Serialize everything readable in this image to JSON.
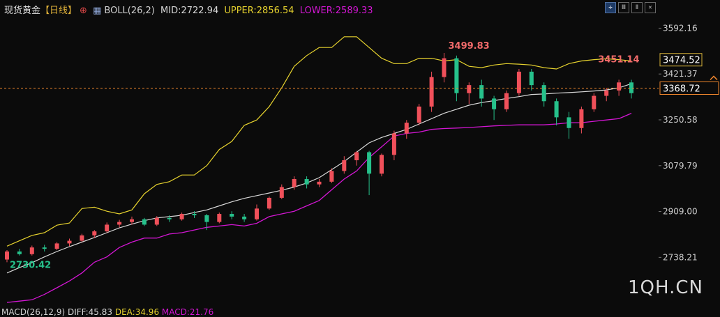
{
  "header": {
    "title": "现货黄金",
    "period": "【日线】",
    "indicator": "BOLL(26,2)",
    "mid": "MID:2722.94",
    "upper": "UPPER:2856.54",
    "lower": "LOWER:2589.33"
  },
  "toolbar": [
    "crosshair",
    "chart-a",
    "chart-b",
    "close"
  ],
  "watermark": "1QH.CN",
  "macd": {
    "label": "MACD(26,12,9)",
    "diff": "DIFF:45.83",
    "dea": "DEA:34.96",
    "macd": "MACD:21.76"
  },
  "colors": {
    "up": "#f0505a",
    "down": "#26c18b",
    "upper_band": "#e6d22e",
    "mid_band": "#d8d8d8",
    "lower_band": "#d316d3",
    "price_line": "#f0862d"
  },
  "chart_data": {
    "type": "candlestick",
    "y_ticks": [
      "3592.16",
      "3421.37",
      "3250.58",
      "3079.79",
      "2909.00",
      "2738.21"
    ],
    "ylim": [
      2560,
      3640
    ],
    "annotations": {
      "high": "3499.83",
      "low": "2730.42",
      "recent_high": "3451.14"
    },
    "price_tags": {
      "current": "3368.72",
      "upper_mark": "3474.52"
    },
    "last_price": 3368.72,
    "upper_mark_price": 3474.52,
    "mid_series": [
      2680,
      2700,
      2718,
      2740,
      2760,
      2778,
      2795,
      2812,
      2830,
      2848,
      2862,
      2875,
      2885,
      2890,
      2895,
      2905,
      2915,
      2930,
      2945,
      2958,
      2968,
      2978,
      2988,
      3000,
      3015,
      3035,
      3065,
      3095,
      3130,
      3165,
      3185,
      3200,
      3215,
      3235,
      3255,
      3275,
      3290,
      3305,
      3315,
      3322,
      3330,
      3337,
      3345,
      3347,
      3350,
      3352,
      3355,
      3358,
      3362,
      3370,
      3385
    ],
    "upper_series": [
      2780,
      2800,
      2820,
      2830,
      2858,
      2866,
      2920,
      2925,
      2910,
      2900,
      2915,
      2975,
      3010,
      3020,
      3045,
      3045,
      3080,
      3140,
      3170,
      3230,
      3250,
      3300,
      3370,
      3450,
      3490,
      3520,
      3520,
      3560,
      3560,
      3520,
      3480,
      3460,
      3460,
      3480,
      3480,
      3470,
      3475,
      3450,
      3445,
      3455,
      3460,
      3458,
      3455,
      3445,
      3440,
      3460,
      3470,
      3475,
      3478,
      3475,
      3470
    ],
    "lower_series": [
      2570,
      2575,
      2580,
      2600,
      2625,
      2650,
      2680,
      2720,
      2740,
      2775,
      2795,
      2810,
      2810,
      2825,
      2830,
      2840,
      2850,
      2855,
      2860,
      2855,
      2865,
      2890,
      2900,
      2910,
      2930,
      2950,
      2990,
      3030,
      3060,
      3110,
      3150,
      3190,
      3200,
      3205,
      3215,
      3218,
      3220,
      3222,
      3225,
      3228,
      3230,
      3232,
      3232,
      3232,
      3235,
      3240,
      3240,
      3245,
      3250,
      3255,
      3275
    ],
    "candles": [
      [
        2730,
        2760,
        2720,
        2765
      ],
      [
        2760,
        2750,
        2745,
        2770
      ],
      [
        2750,
        2775,
        2745,
        2782
      ],
      [
        2775,
        2770,
        2760,
        2785
      ],
      [
        2770,
        2790,
        2765,
        2795
      ],
      [
        2790,
        2800,
        2780,
        2808
      ],
      [
        2800,
        2820,
        2795,
        2826
      ],
      [
        2820,
        2835,
        2810,
        2840
      ],
      [
        2835,
        2860,
        2830,
        2868
      ],
      [
        2860,
        2870,
        2850,
        2878
      ],
      [
        2870,
        2880,
        2860,
        2890
      ],
      [
        2880,
        2860,
        2855,
        2885
      ],
      [
        2860,
        2885,
        2855,
        2892
      ],
      [
        2885,
        2880,
        2870,
        2895
      ],
      [
        2880,
        2900,
        2875,
        2905
      ],
      [
        2900,
        2895,
        2885,
        2910
      ],
      [
        2895,
        2870,
        2840,
        2900
      ],
      [
        2870,
        2900,
        2865,
        2905
      ],
      [
        2900,
        2890,
        2880,
        2910
      ],
      [
        2890,
        2880,
        2870,
        2900
      ],
      [
        2880,
        2920,
        2875,
        2935
      ],
      [
        2920,
        2960,
        2915,
        2965
      ],
      [
        2960,
        3000,
        2955,
        3010
      ],
      [
        3000,
        3030,
        2990,
        3040
      ],
      [
        3030,
        3010,
        2995,
        3040
      ],
      [
        3010,
        3020,
        3000,
        3030
      ],
      [
        3020,
        3060,
        3015,
        3070
      ],
      [
        3060,
        3100,
        3050,
        3115
      ],
      [
        3100,
        3130,
        3080,
        3135
      ],
      [
        3130,
        3050,
        2970,
        3135
      ],
      [
        3050,
        3120,
        3040,
        3125
      ],
      [
        3120,
        3200,
        3100,
        3210
      ],
      [
        3200,
        3240,
        3180,
        3250
      ],
      [
        3240,
        3300,
        3230,
        3310
      ],
      [
        3300,
        3410,
        3280,
        3430
      ],
      [
        3410,
        3480,
        3390,
        3499.83
      ],
      [
        3480,
        3350,
        3320,
        3490
      ],
      [
        3350,
        3380,
        3310,
        3390
      ],
      [
        3380,
        3330,
        3300,
        3400
      ],
      [
        3330,
        3290,
        3250,
        3340
      ],
      [
        3290,
        3350,
        3280,
        3360
      ],
      [
        3350,
        3430,
        3340,
        3440
      ],
      [
        3430,
        3380,
        3360,
        3440
      ],
      [
        3380,
        3320,
        3300,
        3390
      ],
      [
        3320,
        3260,
        3230,
        3330
      ],
      [
        3260,
        3220,
        3180,
        3280
      ],
      [
        3220,
        3290,
        3200,
        3300
      ],
      [
        3290,
        3340,
        3280,
        3350
      ],
      [
        3340,
        3360,
        3320,
        3370
      ],
      [
        3360,
        3390,
        3340,
        3400
      ],
      [
        3390,
        3350,
        3330,
        3400
      ]
    ]
  }
}
